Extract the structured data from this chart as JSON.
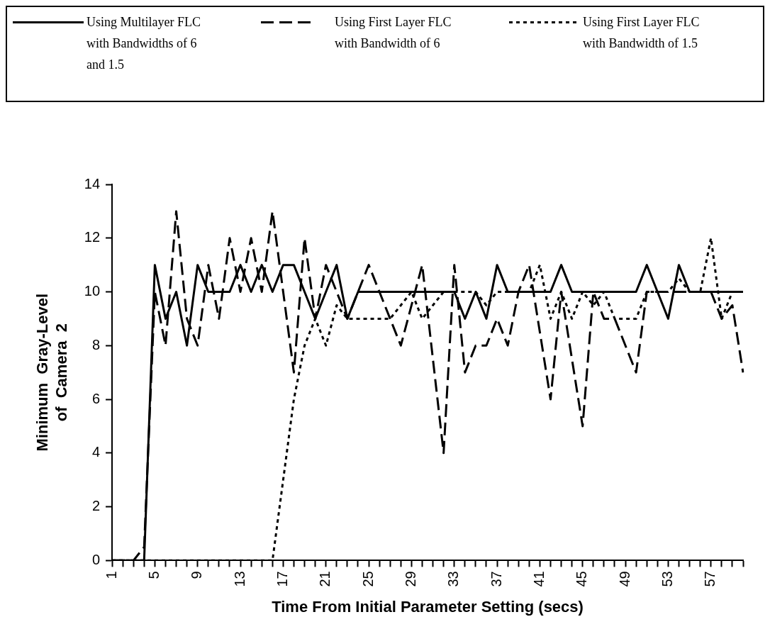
{
  "chart_data": {
    "type": "line",
    "xlabel": "Time From Initial Parameter Setting (secs)",
    "ylabel": "Minimum Gray-Level of Camera 2",
    "categories": [
      "1",
      null,
      null,
      null,
      "5",
      null,
      null,
      null,
      "9",
      null,
      null,
      null,
      "13",
      null,
      null,
      null,
      "17",
      null,
      null,
      null,
      "21",
      null,
      null,
      null,
      "25",
      null,
      null,
      null,
      "29",
      null,
      null,
      null,
      "33",
      null,
      null,
      null,
      "37",
      null,
      null,
      null,
      "41",
      null,
      null,
      null,
      "45",
      null,
      null,
      null,
      "49",
      null,
      null,
      null,
      "53",
      null,
      null,
      null,
      "57",
      null,
      null,
      null
    ],
    "series": [
      {
        "name": "Using Multilayer FLC with Bandwidths of 6 and 1.5",
        "color": "#000000",
        "line_style": "solid",
        "values": [
          0,
          0,
          0,
          0,
          11,
          9,
          10,
          8,
          11,
          10,
          10,
          10,
          11,
          10,
          11,
          10,
          11,
          11,
          10,
          9,
          10,
          11,
          9,
          10,
          10,
          10,
          10,
          10,
          10,
          10,
          10,
          10,
          10,
          9,
          10,
          9,
          11,
          10,
          10,
          10,
          10,
          10,
          11,
          10,
          10,
          10,
          10,
          10,
          10,
          10,
          11,
          10,
          9,
          11,
          10,
          10,
          10,
          10,
          10,
          10
        ]
      },
      {
        "name": "Using First Layer FLC with Bandwidth of 6",
        "color": "#000000",
        "line_style": "dashed",
        "values": [
          0,
          0,
          0,
          0.5,
          10,
          8,
          13,
          9,
          8,
          11,
          9,
          12,
          10,
          12,
          10,
          13,
          10,
          7,
          12,
          9,
          11,
          10,
          9,
          10,
          11,
          10,
          9,
          8,
          9.5,
          11,
          7.5,
          4,
          11,
          7,
          8,
          8,
          9,
          8,
          10,
          11,
          8.5,
          6,
          10,
          7.5,
          5,
          10,
          9,
          9,
          8,
          7,
          10,
          10,
          10,
          10,
          10,
          10,
          10,
          9,
          9.5,
          7
        ]
      },
      {
        "name": "Using First Layer FLC with Bandwidth of 1.5",
        "color": "#000000",
        "line_style": "dotted",
        "values": [
          0,
          0,
          0,
          0,
          0,
          0,
          0,
          0,
          0,
          0,
          0,
          0,
          0,
          0,
          0,
          0,
          3,
          6,
          8,
          9,
          8,
          9.5,
          9,
          9,
          9,
          9,
          9,
          9.5,
          10,
          9,
          9.5,
          10,
          10,
          10,
          10,
          9.5,
          10,
          10,
          10,
          10,
          11,
          9,
          10,
          9,
          10,
          9.5,
          10,
          9,
          9,
          9,
          10,
          10,
          10,
          10.5,
          10,
          10,
          12,
          9,
          10,
          10
        ]
      }
    ],
    "ylim": [
      0,
      14
    ],
    "yticks": [
      0,
      2,
      4,
      6,
      8,
      10,
      12,
      14
    ],
    "legend": "top",
    "marker": "none"
  }
}
